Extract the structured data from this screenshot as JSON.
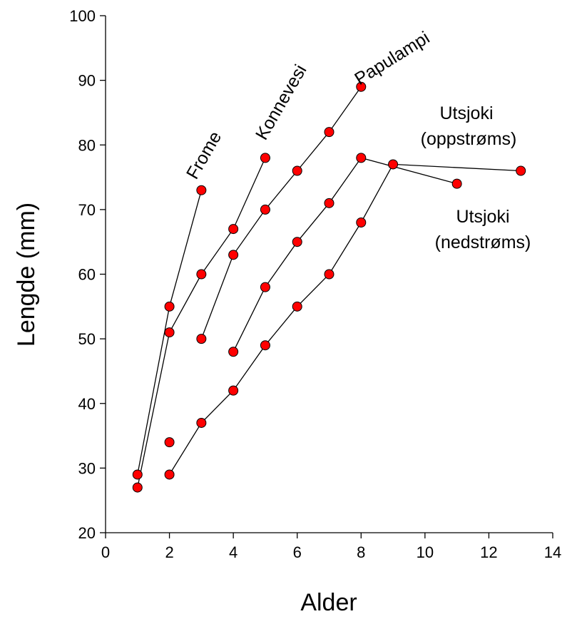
{
  "chart_data": {
    "type": "line",
    "title": "",
    "xlabel": "Alder",
    "ylabel": "Lengde (mm)",
    "xlim": [
      0,
      14
    ],
    "ylim": [
      20,
      100
    ],
    "xticks": [
      0,
      2,
      4,
      6,
      8,
      10,
      12,
      14
    ],
    "yticks": [
      20,
      30,
      40,
      50,
      60,
      70,
      80,
      90,
      100
    ],
    "grid": false,
    "legend": "none",
    "marker_color": "#ff0000",
    "line_color": "#000000",
    "series": [
      {
        "name": "Frome",
        "x": [
          1,
          2,
          3
        ],
        "y": [
          29,
          55,
          73
        ]
      },
      {
        "name": "Konnevesi",
        "x": [
          1,
          2,
          3,
          4,
          5
        ],
        "y": [
          27,
          51,
          60,
          67,
          78
        ]
      },
      {
        "name": "Papulampi",
        "x": [
          3,
          4,
          5,
          6,
          7,
          8
        ],
        "y": [
          50,
          63,
          70,
          76,
          82,
          89
        ]
      },
      {
        "name": "Utsjoki (oppstrøms)",
        "x": [
          4,
          5,
          6,
          7,
          8,
          11
        ],
        "y": [
          48,
          58,
          65,
          71,
          78,
          74
        ]
      },
      {
        "name": "Utsjoki (nedstrøms)",
        "x": [
          2,
          3,
          4,
          5,
          6,
          7,
          8,
          9,
          13
        ],
        "y": [
          29,
          37,
          42,
          49,
          55,
          60,
          68,
          77,
          76
        ]
      }
    ],
    "unconnected_points": [
      {
        "x": 2,
        "y": 34
      }
    ],
    "annotations": {
      "frome": "Frome",
      "konnevesi": "Konnevesi",
      "papulampi": "Papulampi",
      "utsjoki_opp_1": "Utsjoki",
      "utsjoki_opp_2": "(oppstrøms)",
      "utsjoki_ned_1": "Utsjoki",
      "utsjoki_ned_2": "(nedstrøms)"
    }
  }
}
